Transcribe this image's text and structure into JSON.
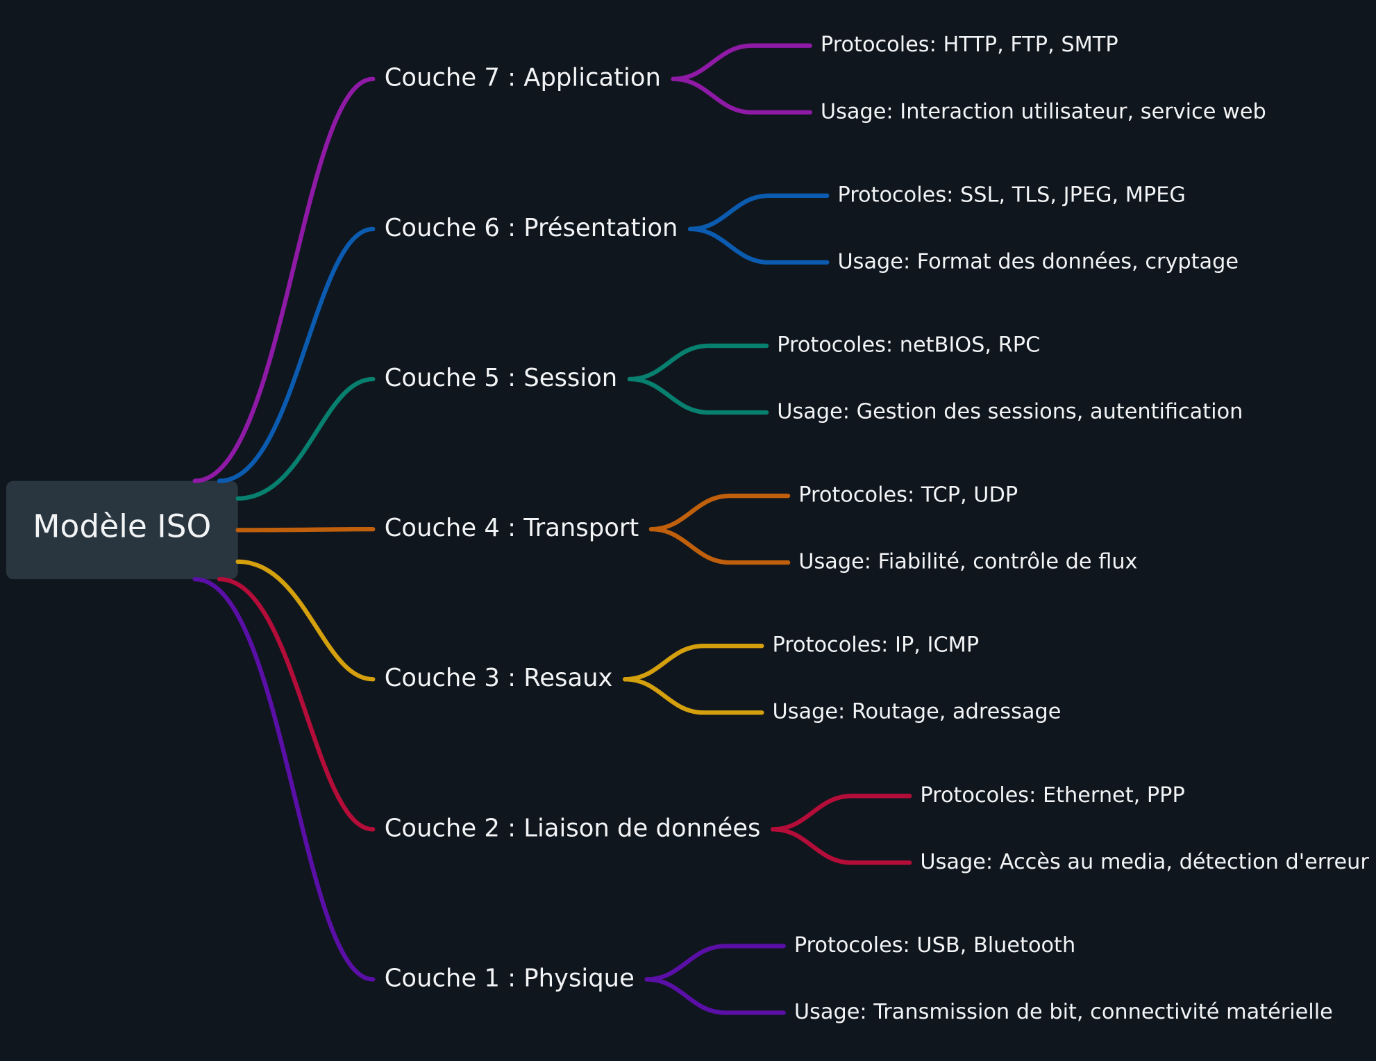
{
  "root": {
    "label": "Modèle ISO"
  },
  "nodes": [
    {
      "label": "Couche 7 : Application",
      "color": "#8e1aa6",
      "children": [
        "Protocoles: HTTP, FTP, SMTP",
        "Usage: Interaction utilisateur, service web"
      ]
    },
    {
      "label": "Couche 6 : Présentation",
      "color": "#0b5cb0",
      "children": [
        "Protocoles: SSL, TLS, JPEG, MPEG",
        "Usage: Format des données, cryptage"
      ]
    },
    {
      "label": "Couche 5 : Session",
      "color": "#07806f",
      "children": [
        "Protocoles: netBIOS, RPC",
        "Usage: Gestion des sessions, autentification"
      ]
    },
    {
      "label": "Couche 4 : Transport",
      "color": "#c0600c",
      "children": [
        "Protocoles: TCP, UDP",
        "Usage: Fiabilité, contrôle de flux"
      ]
    },
    {
      "label": "Couche 3 : Resaux",
      "color": "#d4a00e",
      "children": [
        "Protocoles: IP, ICMP",
        "Usage: Routage, adressage"
      ]
    },
    {
      "label": "Couche 2 : Liaison de données",
      "color": "#b50d3a",
      "children": [
        "Protocoles: Ethernet, PPP",
        "Usage: Accès au media, détection d'erreur"
      ]
    },
    {
      "label": "Couche 1 : Physique",
      "color": "#5a0fa6",
      "children": [
        "Protocoles: USB, Bluetooth",
        "Usage: Transmission de bit, connectivité matérielle"
      ]
    }
  ]
}
